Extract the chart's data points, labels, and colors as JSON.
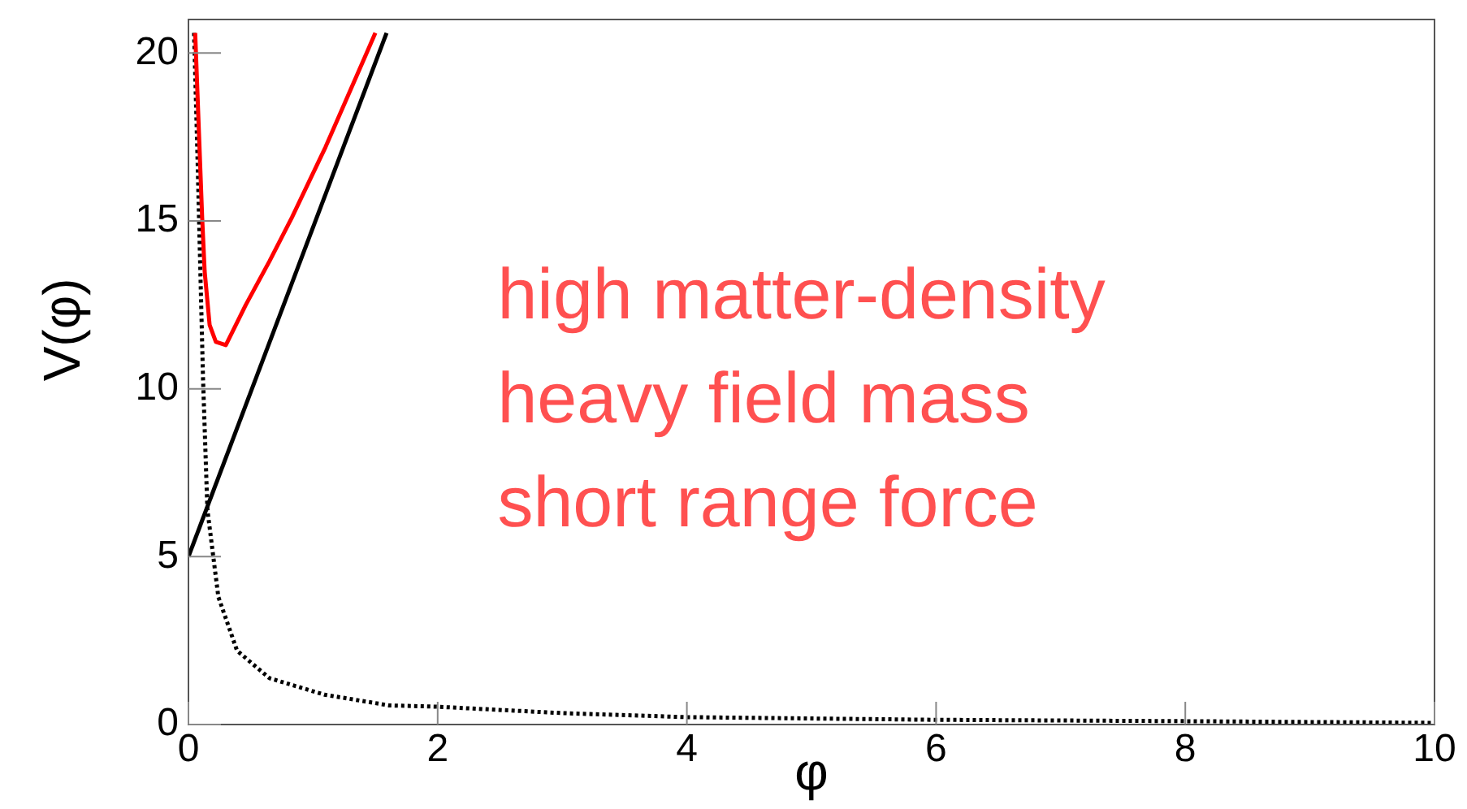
{
  "chart_data": {
    "type": "line",
    "xlabel": "φ",
    "ylabel": "V(φ)",
    "xlim": [
      0,
      10
    ],
    "ylim": [
      0,
      21
    ],
    "xticks": [
      0,
      2,
      4,
      6,
      8,
      10
    ],
    "yticks": [
      0,
      5,
      10,
      15,
      20
    ],
    "grid": false,
    "legend": false,
    "marker": "none",
    "annotations": [
      "high matter-density",
      "heavy field mass",
      "short range force"
    ],
    "series": [
      {
        "color": "#ff0000",
        "line_style": "solid",
        "x": [
          0.054,
          0.11,
          0.13,
          0.17,
          0.22,
          0.3,
          0.46,
          0.65,
          0.83,
          1.1,
          1.43,
          1.5
        ],
        "values": [
          20.6,
          15.1,
          13.5,
          11.9,
          11.4,
          11.3,
          12.5,
          13.8,
          15.1,
          17.2,
          20,
          20.6
        ]
      },
      {
        "color": "#000000",
        "line_style": "solid",
        "x": [
          0,
          1.59
        ],
        "values": [
          5,
          20.6
        ]
      },
      {
        "color": "#000000",
        "line_style": "dotted",
        "x": [
          0.045,
          0.074,
          0.117,
          0.152,
          0.24,
          0.39,
          0.65,
          1.09,
          1.61,
          2,
          3,
          4,
          6,
          8,
          10
        ],
        "values": [
          20.6,
          16.7,
          10.3,
          6.4,
          3.8,
          2.2,
          1.38,
          0.89,
          0.57,
          0.53,
          0.34,
          0.22,
          0.14,
          0.1,
          0.05
        ]
      }
    ]
  }
}
